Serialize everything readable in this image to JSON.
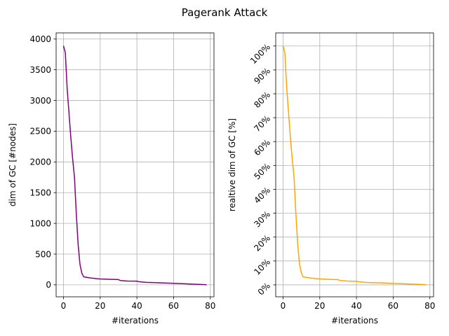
{
  "figure": {
    "title": "Pagerank Attack"
  },
  "chart_data": [
    {
      "type": "line",
      "title": "",
      "xlabel": "#iterations",
      "ylabel": "dim of GC [#nodes]",
      "xlim": [
        -4,
        82
      ],
      "ylim": [
        -195,
        4100
      ],
      "xticks": [
        0,
        20,
        40,
        60,
        80
      ],
      "yticks": [
        0,
        500,
        1000,
        1500,
        2000,
        2500,
        3000,
        3500,
        4000
      ],
      "ytick_labels": [
        "0",
        "500",
        "1000",
        "1500",
        "2000",
        "2500",
        "3000",
        "3500",
        "4000"
      ],
      "grid": true,
      "series": [
        {
          "color": "#800080",
          "x": [
            0,
            1,
            2,
            3,
            4,
            5,
            6,
            7,
            8,
            9,
            10,
            11,
            12,
            13,
            14,
            15,
            16,
            18,
            20,
            25,
            30,
            31,
            35,
            40,
            41,
            43,
            45,
            50,
            55,
            60,
            65,
            70,
            75,
            78
          ],
          "y": [
            3890,
            3780,
            3200,
            2800,
            2400,
            2050,
            1750,
            1150,
            650,
            330,
            190,
            130,
            125,
            120,
            115,
            110,
            108,
            100,
            96,
            90,
            85,
            70,
            62,
            60,
            52,
            45,
            40,
            36,
            30,
            24,
            18,
            12,
            6,
            2
          ]
        }
      ]
    },
    {
      "type": "line",
      "title": "",
      "xlabel": "#iterations",
      "ylabel": "realtive dim of GC [%]",
      "xlim": [
        -4,
        82
      ],
      "ylim": [
        -5,
        105.5
      ],
      "xticks": [
        0,
        20,
        40,
        60,
        80
      ],
      "yticks": [
        0,
        10,
        20,
        30,
        40,
        50,
        60,
        70,
        80,
        90,
        100
      ],
      "ytick_labels": [
        "0%",
        "10%",
        "20%",
        "30%",
        "40%",
        "50%",
        "60%",
        "70%",
        "80%",
        "90%",
        "100%"
      ],
      "grid": true,
      "series": [
        {
          "color": "#ffa500",
          "x": [
            0,
            1,
            2,
            3,
            4,
            5,
            6,
            7,
            8,
            9,
            10,
            11,
            12,
            13,
            14,
            15,
            16,
            18,
            20,
            25,
            30,
            31,
            35,
            40,
            41,
            43,
            45,
            50,
            55,
            60,
            65,
            70,
            75,
            78
          ],
          "y": [
            100,
            97.2,
            82.3,
            72.0,
            61.7,
            52.7,
            45.0,
            29.6,
            16.7,
            8.5,
            4.9,
            3.3,
            3.2,
            3.1,
            3.0,
            2.8,
            2.8,
            2.6,
            2.5,
            2.3,
            2.2,
            1.8,
            1.6,
            1.5,
            1.3,
            1.2,
            1.0,
            0.9,
            0.8,
            0.6,
            0.5,
            0.3,
            0.2,
            0.05
          ]
        }
      ]
    }
  ]
}
